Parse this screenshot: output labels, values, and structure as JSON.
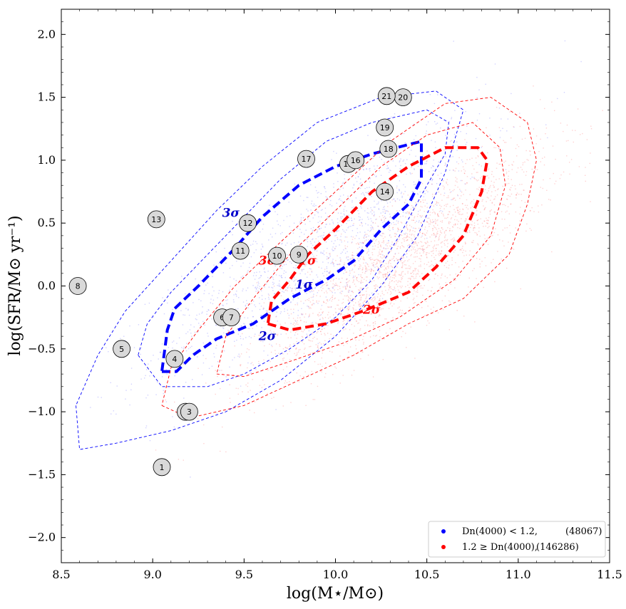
{
  "chart_data": {
    "type": "scatter",
    "xlabel": "log(M⋆/M⊙)",
    "ylabel": "log(SFR/M⊙ yr⁻¹)",
    "xlim": [
      8.5,
      11.5
    ],
    "ylim": [
      -2.2,
      2.2
    ],
    "x_ticks": [
      "8.5",
      "9.0",
      "9.5",
      "10.0",
      "10.5",
      "11.0",
      "11.5"
    ],
    "y_ticks": [
      "−2.0",
      "−1.5",
      "−1.0",
      "−0.5",
      "0.0",
      "0.5",
      "1.0",
      "1.5",
      "2.0"
    ],
    "series": [
      {
        "name": "Dn(4000) < 1.2,",
        "count": "(48067)",
        "color": "#0000ff",
        "center": [
          9.9,
          0.3
        ],
        "spread": [
          0.45,
          0.5
        ]
      },
      {
        "name": "1.2 ≥ Dn(4000),",
        "count": "(146286)",
        "color": "#ff0000",
        "center": [
          10.35,
          0.2
        ],
        "spread": [
          0.4,
          0.45
        ]
      }
    ],
    "contours": [
      {
        "series": "blue",
        "level": "1σ",
        "style": "thick-dashed",
        "points": [
          [
            9.05,
            -0.68
          ],
          [
            9.13,
            -0.68
          ],
          [
            9.22,
            -0.55
          ],
          [
            9.35,
            -0.42
          ],
          [
            9.55,
            -0.3
          ],
          [
            9.75,
            -0.1
          ],
          [
            9.95,
            0.05
          ],
          [
            10.1,
            0.2
          ],
          [
            10.25,
            0.45
          ],
          [
            10.4,
            0.65
          ],
          [
            10.47,
            0.85
          ],
          [
            10.47,
            1.15
          ],
          [
            10.2,
            1.05
          ],
          [
            10.0,
            0.95
          ],
          [
            9.8,
            0.8
          ],
          [
            9.6,
            0.55
          ],
          [
            9.45,
            0.3
          ],
          [
            9.25,
            0.0
          ],
          [
            9.12,
            -0.18
          ],
          [
            9.08,
            -0.35
          ],
          [
            9.05,
            -0.68
          ]
        ]
      },
      {
        "series": "blue",
        "level": "2σ",
        "style": "thin-dashed",
        "points": [
          [
            8.92,
            -0.55
          ],
          [
            9.05,
            -0.8
          ],
          [
            9.3,
            -0.8
          ],
          [
            9.5,
            -0.7
          ],
          [
            9.75,
            -0.5
          ],
          [
            10.0,
            -0.25
          ],
          [
            10.2,
            0.05
          ],
          [
            10.35,
            0.4
          ],
          [
            10.5,
            0.8
          ],
          [
            10.6,
            1.05
          ],
          [
            10.62,
            1.3
          ],
          [
            10.5,
            1.4
          ],
          [
            10.2,
            1.3
          ],
          [
            9.95,
            1.15
          ],
          [
            9.7,
            0.85
          ],
          [
            9.5,
            0.55
          ],
          [
            9.3,
            0.25
          ],
          [
            9.1,
            -0.05
          ],
          [
            8.97,
            -0.3
          ],
          [
            8.92,
            -0.55
          ]
        ]
      },
      {
        "series": "blue",
        "level": "3σ",
        "style": "thin-dashed",
        "points": [
          [
            8.58,
            -0.95
          ],
          [
            8.6,
            -1.3
          ],
          [
            8.8,
            -1.25
          ],
          [
            9.1,
            -1.15
          ],
          [
            9.4,
            -1.0
          ],
          [
            9.7,
            -0.75
          ],
          [
            10.0,
            -0.4
          ],
          [
            10.25,
            0.0
          ],
          [
            10.45,
            0.4
          ],
          [
            10.6,
            0.9
          ],
          [
            10.7,
            1.4
          ],
          [
            10.55,
            1.55
          ],
          [
            10.25,
            1.5
          ],
          [
            9.9,
            1.3
          ],
          [
            9.6,
            0.95
          ],
          [
            9.35,
            0.6
          ],
          [
            9.1,
            0.2
          ],
          [
            8.85,
            -0.2
          ],
          [
            8.7,
            -0.55
          ],
          [
            8.58,
            -0.95
          ]
        ]
      },
      {
        "series": "red",
        "level": "1σ",
        "style": "thick-dashed",
        "points": [
          [
            9.63,
            -0.3
          ],
          [
            9.75,
            -0.35
          ],
          [
            9.95,
            -0.3
          ],
          [
            10.15,
            -0.2
          ],
          [
            10.4,
            -0.05
          ],
          [
            10.55,
            0.15
          ],
          [
            10.7,
            0.4
          ],
          [
            10.8,
            0.75
          ],
          [
            10.83,
            1.0
          ],
          [
            10.78,
            1.1
          ],
          [
            10.6,
            1.1
          ],
          [
            10.4,
            0.95
          ],
          [
            10.2,
            0.75
          ],
          [
            10.0,
            0.45
          ],
          [
            9.85,
            0.25
          ],
          [
            9.75,
            0.05
          ],
          [
            9.65,
            -0.12
          ],
          [
            9.63,
            -0.3
          ]
        ]
      },
      {
        "series": "red",
        "level": "2σ",
        "style": "thin-dashed",
        "points": [
          [
            9.35,
            -0.7
          ],
          [
            9.5,
            -0.72
          ],
          [
            9.75,
            -0.6
          ],
          [
            10.05,
            -0.45
          ],
          [
            10.35,
            -0.25
          ],
          [
            10.65,
            0.05
          ],
          [
            10.85,
            0.4
          ],
          [
            10.93,
            0.8
          ],
          [
            10.9,
            1.1
          ],
          [
            10.75,
            1.3
          ],
          [
            10.5,
            1.2
          ],
          [
            10.25,
            0.95
          ],
          [
            10.0,
            0.6
          ],
          [
            9.75,
            0.25
          ],
          [
            9.55,
            -0.1
          ],
          [
            9.4,
            -0.4
          ],
          [
            9.35,
            -0.7
          ]
        ]
      },
      {
        "series": "red",
        "level": "3σ",
        "style": "thin-dashed",
        "points": [
          [
            9.05,
            -0.95
          ],
          [
            9.2,
            -1.05
          ],
          [
            9.5,
            -0.95
          ],
          [
            9.8,
            -0.75
          ],
          [
            10.1,
            -0.55
          ],
          [
            10.4,
            -0.3
          ],
          [
            10.7,
            -0.1
          ],
          [
            10.95,
            0.25
          ],
          [
            11.05,
            0.65
          ],
          [
            11.1,
            1.0
          ],
          [
            11.05,
            1.3
          ],
          [
            10.85,
            1.5
          ],
          [
            10.6,
            1.45
          ],
          [
            10.3,
            1.15
          ],
          [
            10.0,
            0.75
          ],
          [
            9.7,
            0.35
          ],
          [
            9.45,
            0.0
          ],
          [
            9.25,
            -0.35
          ],
          [
            9.1,
            -0.65
          ],
          [
            9.05,
            -0.95
          ]
        ]
      }
    ],
    "contour_labels": [
      {
        "text": "3σ",
        "x": 9.38,
        "y": 0.55,
        "color": "#0000cc"
      },
      {
        "text": "2σ",
        "x": 9.58,
        "y": -0.43,
        "color": "#0000cc"
      },
      {
        "text": "1σ",
        "x": 9.78,
        "y": -0.02,
        "color": "#0000cc"
      },
      {
        "text": "3σ",
        "x": 9.58,
        "y": 0.17,
        "color": "#ff0000"
      },
      {
        "text": "1σ",
        "x": 9.8,
        "y": 0.17,
        "color": "#ff0000"
      },
      {
        "text": "2σ",
        "x": 10.15,
        "y": -0.22,
        "color": "#ff0000"
      }
    ],
    "markers": [
      {
        "label": "1",
        "x": 9.05,
        "y": -1.44
      },
      {
        "label": "2",
        "x": 9.18,
        "y": -1.0
      },
      {
        "label": "3",
        "x": 9.2,
        "y": -1.0
      },
      {
        "label": "4",
        "x": 9.12,
        "y": -0.58
      },
      {
        "label": "5",
        "x": 8.83,
        "y": -0.5
      },
      {
        "label": "6",
        "x": 9.38,
        "y": -0.25
      },
      {
        "label": "7",
        "x": 9.43,
        "y": -0.25
      },
      {
        "label": "8",
        "x": 8.59,
        "y": 0.0
      },
      {
        "label": "9",
        "x": 9.8,
        "y": 0.25
      },
      {
        "label": "10",
        "x": 9.68,
        "y": 0.24
      },
      {
        "label": "11",
        "x": 9.48,
        "y": 0.28
      },
      {
        "label": "12",
        "x": 9.52,
        "y": 0.5
      },
      {
        "label": "13",
        "x": 9.02,
        "y": 0.53
      },
      {
        "label": "14",
        "x": 10.27,
        "y": 0.75
      },
      {
        "label": "15",
        "x": 10.07,
        "y": 0.97
      },
      {
        "label": "16",
        "x": 10.11,
        "y": 1.0
      },
      {
        "label": "17",
        "x": 9.84,
        "y": 1.01
      },
      {
        "label": "18",
        "x": 10.29,
        "y": 1.09
      },
      {
        "label": "19",
        "x": 10.27,
        "y": 1.26
      },
      {
        "label": "20",
        "x": 10.37,
        "y": 1.5
      },
      {
        "label": "21",
        "x": 10.28,
        "y": 1.51
      }
    ],
    "legend": {
      "position": "bottom-right",
      "entries": [
        {
          "label": "Dn(4000) < 1.2,",
          "count": "(48067)",
          "color": "#0000ff"
        },
        {
          "label": "1.2 ≥ Dn(4000),",
          "count": "(146286)",
          "color": "#ff0000"
        }
      ]
    }
  }
}
